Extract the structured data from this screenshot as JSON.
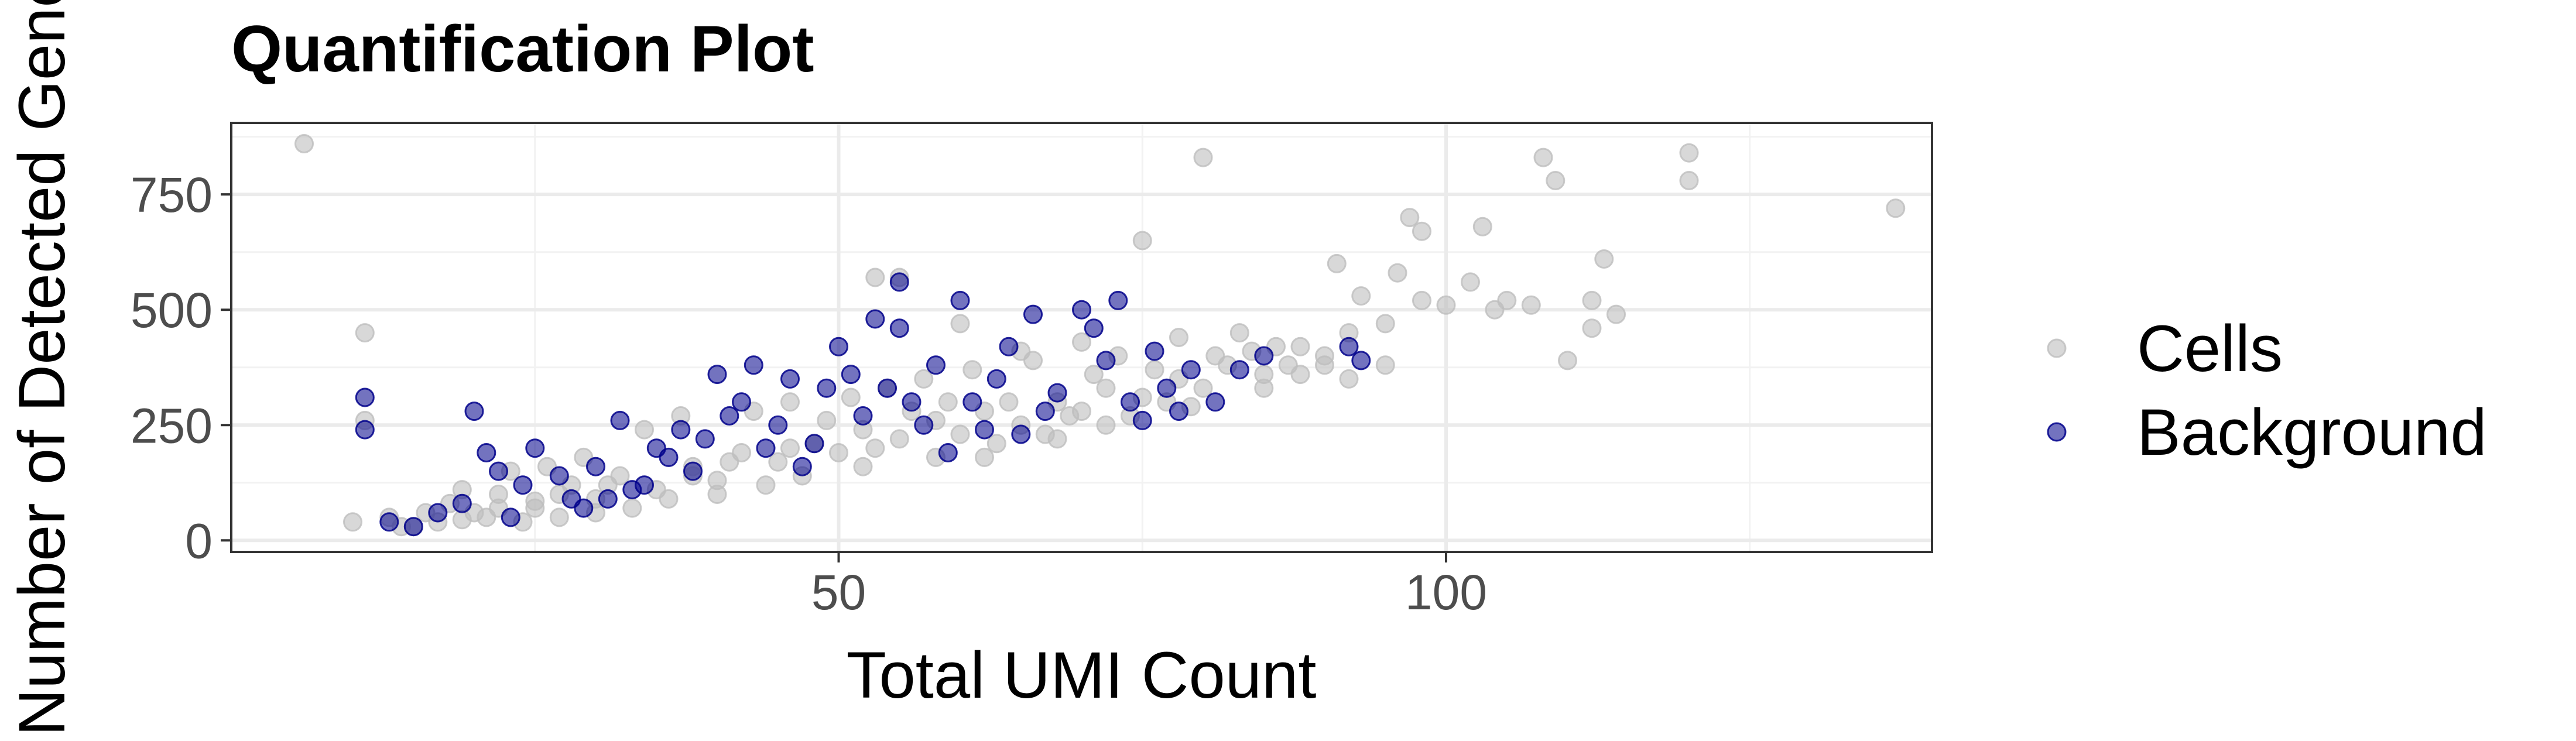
{
  "chart_data": {
    "type": "scatter",
    "title": "Quantification Plot",
    "xlabel": "Total UMI Count",
    "ylabel": "Number of Detected Genes",
    "xlim": [
      0,
      140
    ],
    "ylim": [
      -25,
      905
    ],
    "x_ticks": [
      50,
      100
    ],
    "y_ticks": [
      0,
      250,
      500,
      750
    ],
    "grid": true,
    "legend_position": "right",
    "colors": {
      "Cells": "#bebebe",
      "Background": "#00008b"
    },
    "series": [
      {
        "name": "Cells",
        "points": [
          [
            6,
            860
          ],
          [
            11,
            450
          ],
          [
            11,
            260
          ],
          [
            10,
            40
          ],
          [
            13,
            50
          ],
          [
            15,
            30
          ],
          [
            18,
            80
          ],
          [
            20,
            60
          ],
          [
            22,
            100
          ],
          [
            25,
            70
          ],
          [
            28,
            120
          ],
          [
            30,
            90
          ],
          [
            32,
            140
          ],
          [
            35,
            110
          ],
          [
            38,
            160
          ],
          [
            40,
            130
          ],
          [
            42,
            190
          ],
          [
            45,
            170
          ],
          [
            48,
            210
          ],
          [
            50,
            190
          ],
          [
            52,
            240
          ],
          [
            55,
            220
          ],
          [
            58,
            260
          ],
          [
            60,
            230
          ],
          [
            62,
            280
          ],
          [
            65,
            250
          ],
          [
            68,
            300
          ],
          [
            70,
            280
          ],
          [
            72,
            330
          ],
          [
            75,
            310
          ],
          [
            78,
            350
          ],
          [
            80,
            330
          ],
          [
            82,
            380
          ],
          [
            85,
            360
          ],
          [
            88,
            420
          ],
          [
            90,
            400
          ],
          [
            92,
            450
          ],
          [
            95,
            470
          ],
          [
            98,
            520
          ],
          [
            100,
            510
          ],
          [
            102,
            560
          ],
          [
            105,
            520
          ],
          [
            108,
            830
          ],
          [
            109,
            780
          ],
          [
            110,
            390
          ],
          [
            112,
            460
          ],
          [
            113,
            610
          ],
          [
            114,
            490
          ],
          [
            120,
            840
          ],
          [
            120,
            780
          ],
          [
            137,
            720
          ],
          [
            75,
            650
          ],
          [
            80,
            830
          ],
          [
            55,
            570
          ],
          [
            53,
            570
          ],
          [
            97,
            700
          ],
          [
            98,
            670
          ],
          [
            103,
            680
          ],
          [
            96,
            580
          ],
          [
            60,
            470
          ],
          [
            65,
            410
          ],
          [
            70,
            430
          ],
          [
            73,
            400
          ],
          [
            78,
            440
          ],
          [
            83,
            450
          ],
          [
            86,
            420
          ],
          [
            90,
            380
          ],
          [
            92,
            350
          ],
          [
            95,
            380
          ],
          [
            64,
            300
          ],
          [
            58,
            180
          ],
          [
            52,
            160
          ],
          [
            47,
            140
          ],
          [
            44,
            120
          ],
          [
            40,
            100
          ],
          [
            36,
            90
          ],
          [
            33,
            70
          ],
          [
            30,
            60
          ],
          [
            27,
            50
          ],
          [
            24,
            40
          ],
          [
            21,
            50
          ],
          [
            17,
            40
          ],
          [
            19,
            110
          ],
          [
            23,
            150
          ],
          [
            26,
            160
          ],
          [
            29,
            180
          ],
          [
            34,
            240
          ],
          [
            37,
            270
          ],
          [
            43,
            280
          ],
          [
            46,
            300
          ],
          [
            51,
            310
          ],
          [
            54,
            330
          ],
          [
            57,
            350
          ],
          [
            61,
            370
          ],
          [
            66,
            390
          ],
          [
            71,
            360
          ],
          [
            76,
            370
          ],
          [
            81,
            400
          ],
          [
            84,
            410
          ],
          [
            87,
            380
          ],
          [
            63,
            210
          ],
          [
            67,
            230
          ],
          [
            74,
            270
          ],
          [
            79,
            290
          ],
          [
            49,
            260
          ],
          [
            56,
            280
          ],
          [
            59,
            300
          ],
          [
            62,
            180
          ],
          [
            68,
            220
          ],
          [
            72,
            250
          ],
          [
            46,
            200
          ],
          [
            41,
            170
          ],
          [
            38,
            140
          ],
          [
            31,
            120
          ],
          [
            27,
            100
          ],
          [
            22,
            70
          ],
          [
            16,
            60
          ],
          [
            14,
            30
          ],
          [
            19,
            45
          ],
          [
            25,
            85
          ],
          [
            93,
            530
          ],
          [
            91,
            600
          ],
          [
            104,
            500
          ],
          [
            107,
            510
          ],
          [
            112,
            520
          ],
          [
            88,
            360
          ],
          [
            85,
            330
          ],
          [
            77,
            300
          ],
          [
            69,
            270
          ],
          [
            53,
            200
          ]
        ]
      },
      {
        "name": "Background",
        "points": [
          [
            11,
            310
          ],
          [
            11,
            240
          ],
          [
            13,
            40
          ],
          [
            17,
            60
          ],
          [
            20,
            280
          ],
          [
            21,
            190
          ],
          [
            23,
            50
          ],
          [
            25,
            200
          ],
          [
            28,
            90
          ],
          [
            30,
            160
          ],
          [
            32,
            260
          ],
          [
            34,
            120
          ],
          [
            36,
            180
          ],
          [
            39,
            220
          ],
          [
            40,
            360
          ],
          [
            42,
            300
          ],
          [
            43,
            380
          ],
          [
            45,
            250
          ],
          [
            47,
            160
          ],
          [
            49,
            330
          ],
          [
            50,
            420
          ],
          [
            52,
            270
          ],
          [
            53,
            480
          ],
          [
            55,
            560
          ],
          [
            55,
            460
          ],
          [
            56,
            300
          ],
          [
            58,
            380
          ],
          [
            60,
            520
          ],
          [
            62,
            240
          ],
          [
            64,
            420
          ],
          [
            66,
            490
          ],
          [
            67,
            280
          ],
          [
            70,
            500
          ],
          [
            71,
            460
          ],
          [
            73,
            520
          ],
          [
            75,
            260
          ],
          [
            77,
            330
          ],
          [
            79,
            370
          ],
          [
            81,
            300
          ],
          [
            83,
            370
          ],
          [
            85,
            400
          ],
          [
            92,
            420
          ],
          [
            93,
            390
          ],
          [
            24,
            120
          ],
          [
            27,
            140
          ],
          [
            31,
            90
          ],
          [
            35,
            200
          ],
          [
            38,
            150
          ],
          [
            41,
            270
          ],
          [
            44,
            200
          ],
          [
            46,
            350
          ],
          [
            48,
            210
          ],
          [
            51,
            360
          ],
          [
            54,
            330
          ],
          [
            57,
            250
          ],
          [
            59,
            190
          ],
          [
            61,
            300
          ],
          [
            63,
            350
          ],
          [
            65,
            230
          ],
          [
            68,
            320
          ],
          [
            72,
            390
          ],
          [
            74,
            300
          ],
          [
            76,
            410
          ],
          [
            78,
            280
          ],
          [
            29,
            70
          ],
          [
            33,
            110
          ],
          [
            37,
            240
          ],
          [
            19,
            80
          ],
          [
            15,
            30
          ],
          [
            22,
            150
          ]
        ]
      }
    ]
  }
}
